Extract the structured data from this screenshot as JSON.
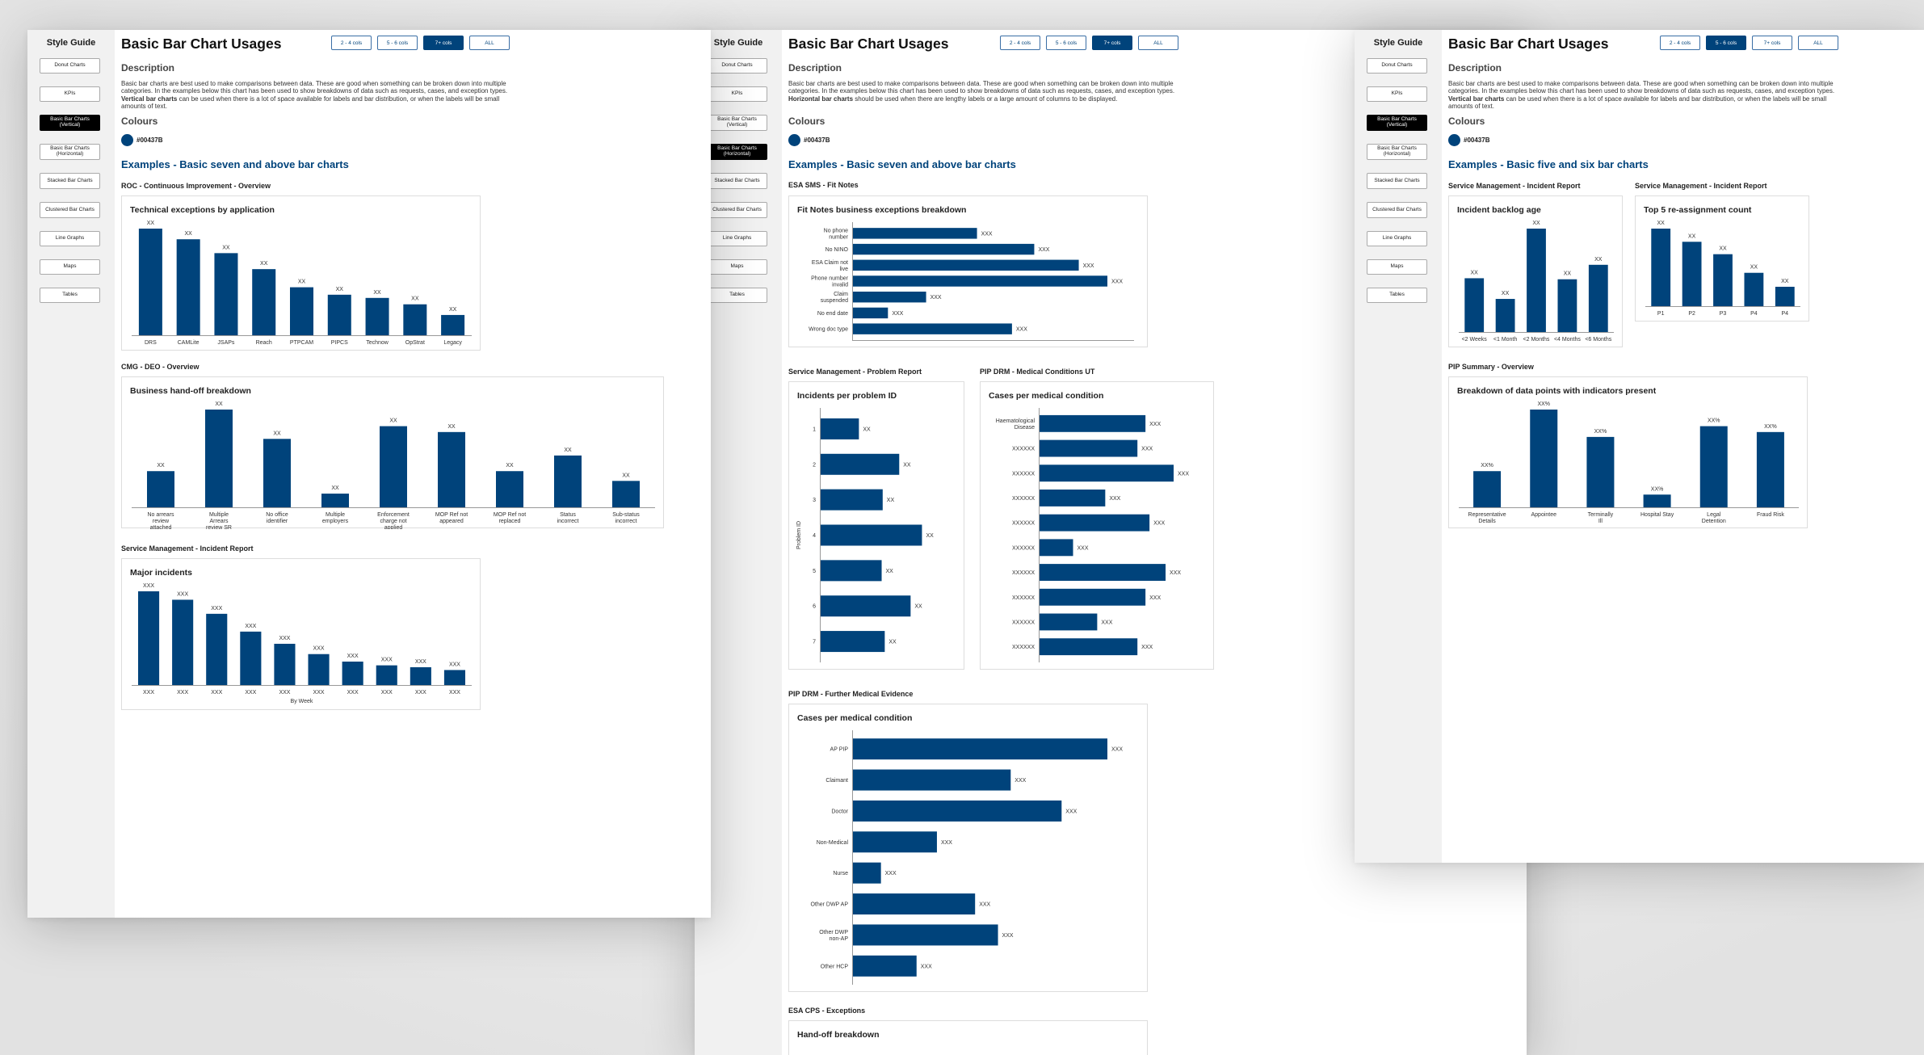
{
  "brand_color": "#00437B",
  "sidebar": {
    "title": "Style Guide",
    "items": [
      {
        "label": "Donut Charts"
      },
      {
        "label": "KPIs"
      },
      {
        "label": "Basic Bar Charts (Vertical)"
      },
      {
        "label": "Basic Bar Charts (Horizontal)"
      },
      {
        "label": "Stacked Bar Charts"
      },
      {
        "label": "Clustered Bar Charts"
      },
      {
        "label": "Line Graphs"
      },
      {
        "label": "Maps"
      },
      {
        "label": "Tables"
      }
    ]
  },
  "page": {
    "title": "Basic Bar Chart Usages",
    "filters": [
      "2 - 4 cols",
      "5 - 6 cols",
      "7+ cols",
      "ALL"
    ],
    "description_heading": "Description",
    "description_vertical_a": "Basic bar charts are best used to make comparisons between data.  These are good when something can be broken down into multiple categories.  In the examples below this chart has been used to show breakdowns of data such as requests, cases, and exception types. ",
    "description_vertical_bold": "Vertical bar charts",
    "description_vertical_b": " can be used when there is a lot of space available for labels and bar distribution, or when the labels will be small amounts of text.",
    "description_horizontal_a": "Basic bar charts are best used to make comparisons between data.  These are good when something can be broken down into multiple categories.  In the examples below this chart has been used to show breakdowns of data such as requests, cases, and exception types. ",
    "description_horizontal_bold": "Horizontal bar charts",
    "description_horizontal_b": " should be used when there are lengthy labels or a large amount of columns to be displayed.",
    "colours_heading": "Colours",
    "colour_hex": "#00437B"
  },
  "windows": {
    "w1": {
      "active_nav": 2,
      "active_filter": 2,
      "examples_title": "Examples - Basic seven and above bar charts",
      "sections": [
        "ROC - Continuous Improvement - Overview",
        "CMG - DEO - Overview",
        "Service Management - Incident Report"
      ],
      "charts": [
        "Technical exceptions by application",
        "Business hand-off breakdown",
        "Major incidents"
      ],
      "xlabel_major": "By Week"
    },
    "w2": {
      "active_nav": 3,
      "active_filter": 2,
      "examples_title": "Examples - Basic seven and above bar charts",
      "sections": [
        "ESA SMS - Fit Notes",
        "Service Management - Problem Report",
        "PIP DRM - Medical Conditions UT",
        "PIP DRM - Further Medical Evidence",
        "ESA CPS - Exceptions"
      ],
      "charts": [
        "Fit Notes business exceptions breakdown",
        "Incidents per problem ID",
        "Cases per medical condition",
        "Cases per medical condition",
        "Hand-off breakdown"
      ],
      "ylabel_problem": "Problem ID"
    },
    "w3": {
      "active_nav": 2,
      "active_filter": 1,
      "examples_title": "Examples - Basic five and six bar charts",
      "sections": [
        "Service Management - Incident Report",
        "Service Management - Incident Report",
        "PIP Summary - Overview"
      ],
      "charts": [
        "Incident backlog age",
        "Top 5 re-assignment count",
        "Breakdown of data points with indicators present"
      ]
    }
  },
  "chart_data": [
    {
      "id": "tech_exceptions",
      "type": "bar",
      "title": "Technical exceptions by application",
      "categories": [
        "DRS",
        "CAMLite",
        "JSAPs",
        "Reach",
        "PTPCAM",
        "PIPCS",
        "Technow",
        "OpStrat",
        "Legacy"
      ],
      "values": [
        100,
        90,
        77,
        62,
        45,
        38,
        35,
        29,
        19
      ],
      "labels": [
        "XX",
        "XX",
        "XX",
        "XX",
        "XX",
        "XX",
        "XX",
        "XX",
        "XX"
      ],
      "ylim": [
        0,
        100
      ]
    },
    {
      "id": "handoff",
      "type": "bar",
      "title": "Business hand-off breakdown",
      "categories": [
        "No arrears review attached",
        "Multiple Arrears review SR",
        "No office identifier",
        "Multiple employers",
        "Enforcement charge not applied",
        "MOP Ref not appeared",
        "MOP Ref not replaced",
        "Status incorrect",
        "Sub-status incorrect"
      ],
      "values": [
        37,
        100,
        70,
        14,
        83,
        77,
        37,
        53,
        27
      ],
      "labels": [
        "XX",
        "XX",
        "XX",
        "XX",
        "XX",
        "XX",
        "XX",
        "XX",
        "XX"
      ],
      "ylim": [
        0,
        100
      ]
    },
    {
      "id": "major_incidents",
      "type": "bar",
      "title": "Major incidents",
      "xlabel": "By Week",
      "categories": [
        "XXX",
        "XXX",
        "XXX",
        "XXX",
        "XXX",
        "XXX",
        "XXX",
        "XXX",
        "XXX",
        "XXX"
      ],
      "values": [
        100,
        91,
        76,
        57,
        44,
        33,
        25,
        21,
        19,
        16
      ],
      "labels": [
        "XXX",
        "XXX",
        "XXX",
        "XXX",
        "XXX",
        "XXX",
        "XXX",
        "XXX",
        "XXX",
        "XXX"
      ],
      "ylim": [
        0,
        100
      ]
    },
    {
      "id": "fit_notes",
      "type": "bar",
      "orientation": "horizontal",
      "title": "Fit Notes business exceptions breakdown",
      "categories": [
        "No phone number",
        "No NINO",
        "ESA Claim not live",
        "Phone number invalid",
        "Claim suspended",
        "No end date",
        "Wrong doc type"
      ],
      "values": [
        39,
        57,
        71,
        80,
        23,
        11,
        50
      ],
      "labels": [
        "XXX",
        "XXX",
        "XXX",
        "XXX",
        "XXX",
        "XXX",
        "XXX"
      ],
      "ylim": [
        0,
        80
      ]
    },
    {
      "id": "problem_id",
      "type": "bar",
      "orientation": "horizontal",
      "title": "Incidents per problem ID",
      "ylabel": "Problem ID",
      "categories": [
        "1",
        "2",
        "3",
        "4",
        "5",
        "6",
        "7"
      ],
      "values": [
        37,
        76,
        60,
        98,
        59,
        87,
        62
      ],
      "labels": [
        "XX",
        "XX",
        "XX",
        "XX",
        "XX",
        "XX",
        "XX"
      ],
      "ylim": [
        0,
        100
      ]
    },
    {
      "id": "medical_ut",
      "type": "bar",
      "orientation": "horizontal",
      "title": "Cases per medical condition",
      "categories": [
        "Haematological Disease",
        "XXXXXX",
        "XXXXXX",
        "XXXXXX",
        "XXXXXX",
        "XXXXXX",
        "XXXXXX",
        "XXXXXX",
        "XXXXXX",
        "XXXXXX"
      ],
      "values": [
        79,
        73,
        100,
        49,
        82,
        25,
        94,
        79,
        43,
        73
      ],
      "labels": [
        "XXX",
        "XXX",
        "XXX",
        "XXX",
        "XXX",
        "XXX",
        "XXX",
        "XXX",
        "XXX",
        "XXX"
      ],
      "ylim": [
        0,
        100
      ]
    },
    {
      "id": "further_evidence",
      "type": "bar",
      "orientation": "horizontal",
      "title": "Cases per medical condition",
      "categories": [
        "AP PIP",
        "Claimant",
        "Doctor",
        "Non-Medical",
        "Nurse",
        "Other DWP AP",
        "Other DWP non-AP",
        "Other HCP"
      ],
      "values": [
        100,
        62,
        82,
        33,
        11,
        48,
        57,
        25
      ],
      "labels": [
        "XXX",
        "XXX",
        "XXX",
        "XXX",
        "XXX",
        "XXX",
        "XXX",
        "XXX"
      ],
      "ylim": [
        0,
        100
      ]
    },
    {
      "id": "backlog_age",
      "type": "bar",
      "title": "Incident backlog age",
      "categories": [
        "<2 Weeks",
        "<1 Month",
        "<2 Months",
        "<4 Months",
        "<6 Months"
      ],
      "values": [
        52,
        32,
        100,
        51,
        65
      ],
      "labels": [
        "XX",
        "XX",
        "XX",
        "XX",
        "XX"
      ],
      "ylim": [
        0,
        100
      ]
    },
    {
      "id": "reassignment",
      "type": "bar",
      "title": "Top 5 re-assignment count",
      "categories": [
        "P1",
        "P2",
        "P3",
        "P4",
        "P4"
      ],
      "values": [
        100,
        83,
        67,
        43,
        25
      ],
      "labels": [
        "XX",
        "XX",
        "XX",
        "XX",
        "XX"
      ],
      "ylim": [
        0,
        100
      ]
    },
    {
      "id": "indicators",
      "type": "bar",
      "title": "Breakdown of data points with indicators present",
      "categories": [
        "Representative Details",
        "Appointee",
        "Terminally Ill",
        "Hospital Stay",
        "Legal Detention",
        "Fraud Risk"
      ],
      "values": [
        37,
        100,
        72,
        13,
        83,
        77
      ],
      "labels": [
        "XX%",
        "XX%",
        "XX%",
        "XX%",
        "XX%",
        "XX%"
      ],
      "ylim": [
        0,
        100
      ]
    }
  ]
}
